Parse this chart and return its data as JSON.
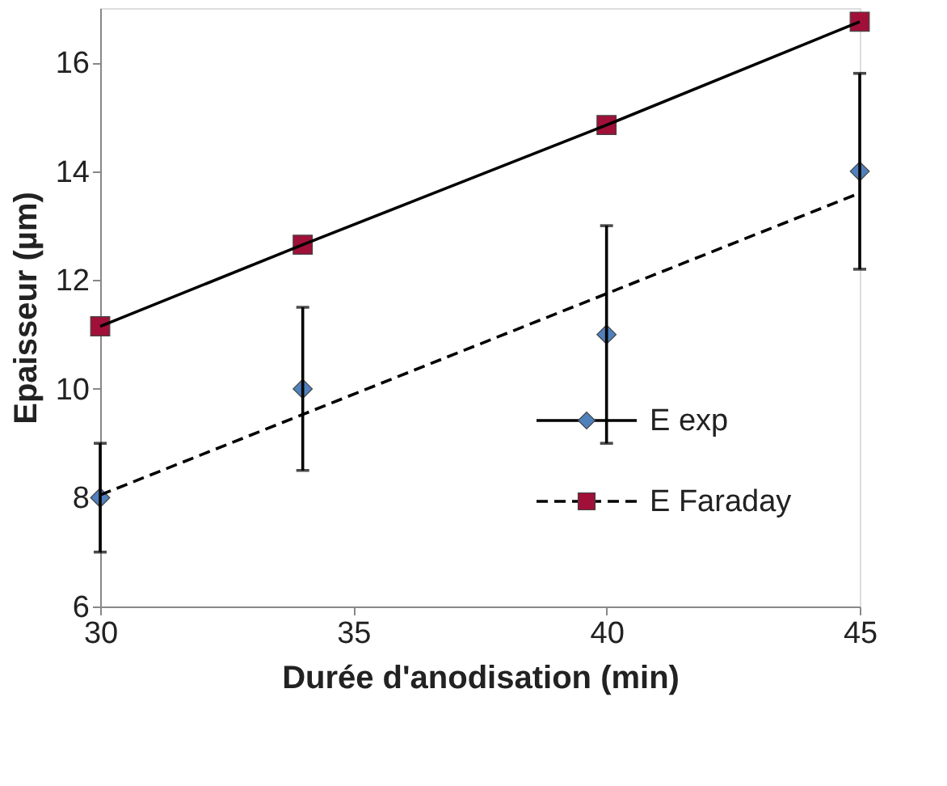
{
  "chart_data": {
    "type": "scatter",
    "xlabel": "Durée d'anodisation (min)",
    "ylabel": "Epaisseur (µm)",
    "x": [
      30,
      34,
      40,
      45
    ],
    "series": [
      {
        "name": "E exp",
        "color": "#4f81bd",
        "marker": "diamond",
        "line_style": "solid",
        "values": [
          8,
          10,
          11,
          14
        ],
        "errors": [
          [
            7,
            9
          ],
          [
            8.5,
            11.5
          ],
          [
            9,
            13
          ],
          [
            12.2,
            15.8
          ]
        ]
      },
      {
        "name": "E Faraday",
        "color": "#a01038",
        "marker": "square",
        "line_style": "dashed",
        "values": [
          11.15,
          12.65,
          14.85,
          16.75
        ]
      },
      {
        "type": "line",
        "color": "#000000",
        "line_style": "dashed",
        "x": [
          30,
          45
        ],
        "values": [
          8.05,
          13.6
        ]
      },
      {
        "type": "line",
        "color": "#000000",
        "line_style": "solid",
        "values": [
          11.15,
          12.65,
          14.85,
          16.75
        ]
      }
    ],
    "xlim": [
      30,
      45
    ],
    "ylim": [
      6,
      17
    ],
    "xticks": [
      30,
      35,
      40,
      45
    ],
    "yticks": [
      6,
      8,
      10,
      12,
      14,
      16
    ],
    "grid": false,
    "legend": "bottom right"
  }
}
